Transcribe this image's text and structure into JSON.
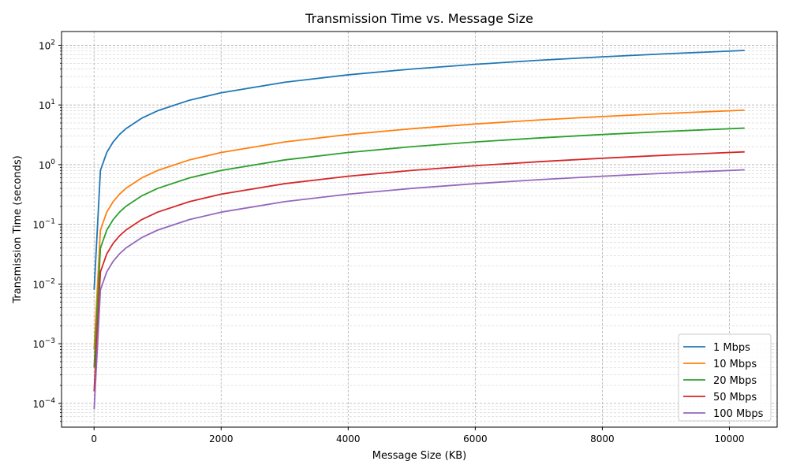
{
  "chart_data": {
    "type": "line",
    "title": "Transmission Time vs. Message Size",
    "xlabel": "Message Size (KB)",
    "ylabel": "Transmission Time (seconds)",
    "xlim": [
      -512,
      10752
    ],
    "ylim": [
      4e-05,
      170
    ],
    "yscale": "log",
    "grid": true,
    "legend": "bottom-right",
    "x_ticks": [
      {
        "value": 0,
        "label": "0"
      },
      {
        "value": 2000,
        "label": "2000"
      },
      {
        "value": 4000,
        "label": "4000"
      },
      {
        "value": 6000,
        "label": "6000"
      },
      {
        "value": 8000,
        "label": "8000"
      },
      {
        "value": 10000,
        "label": "10000"
      }
    ],
    "y_ticks": [
      {
        "value": 0.0001,
        "base": "10",
        "exp": "−4"
      },
      {
        "value": 0.001,
        "base": "10",
        "exp": "−3"
      },
      {
        "value": 0.01,
        "base": "10",
        "exp": "−2"
      },
      {
        "value": 0.1,
        "base": "10",
        "exp": "−1"
      },
      {
        "value": 1,
        "base": "10",
        "exp": "0"
      },
      {
        "value": 10,
        "base": "10",
        "exp": "1"
      },
      {
        "value": 100,
        "base": "10",
        "exp": "2"
      }
    ],
    "x": [
      1,
      100,
      200,
      300,
      400,
      500,
      750,
      1000,
      1500,
      2000,
      3000,
      4000,
      5000,
      6000,
      7000,
      8000,
      9000,
      10240
    ],
    "series": [
      {
        "name": "1 Mbps",
        "color": "#1f77b4",
        "values": [
          0.008,
          0.8,
          1.6,
          2.4,
          3.2,
          4.0,
          6.0,
          8.0,
          12.0,
          16.0,
          24.0,
          32.0,
          40.0,
          48.0,
          56.0,
          64.0,
          72.0,
          81.92
        ]
      },
      {
        "name": "10 Mbps",
        "color": "#ff7f0e",
        "values": [
          0.0008,
          0.08,
          0.16,
          0.24,
          0.32,
          0.4,
          0.6,
          0.8,
          1.2,
          1.6,
          2.4,
          3.2,
          4.0,
          4.8,
          5.6,
          6.4,
          7.2,
          8.192
        ]
      },
      {
        "name": "20 Mbps",
        "color": "#2ca02c",
        "values": [
          0.0004,
          0.04,
          0.08,
          0.12,
          0.16,
          0.2,
          0.3,
          0.4,
          0.6,
          0.8,
          1.2,
          1.6,
          2.0,
          2.4,
          2.8,
          3.2,
          3.6,
          4.096
        ]
      },
      {
        "name": "50 Mbps",
        "color": "#d62728",
        "values": [
          0.00016,
          0.016,
          0.032,
          0.048,
          0.064,
          0.08,
          0.12,
          0.16,
          0.24,
          0.32,
          0.48,
          0.64,
          0.8,
          0.96,
          1.12,
          1.28,
          1.44,
          1.6384
        ]
      },
      {
        "name": "100 Mbps",
        "color": "#9467bd",
        "values": [
          8e-05,
          0.008,
          0.016,
          0.024,
          0.032,
          0.04,
          0.06,
          0.08,
          0.12,
          0.16,
          0.24,
          0.32,
          0.4,
          0.48,
          0.56,
          0.64,
          0.72,
          0.8192
        ]
      }
    ]
  }
}
